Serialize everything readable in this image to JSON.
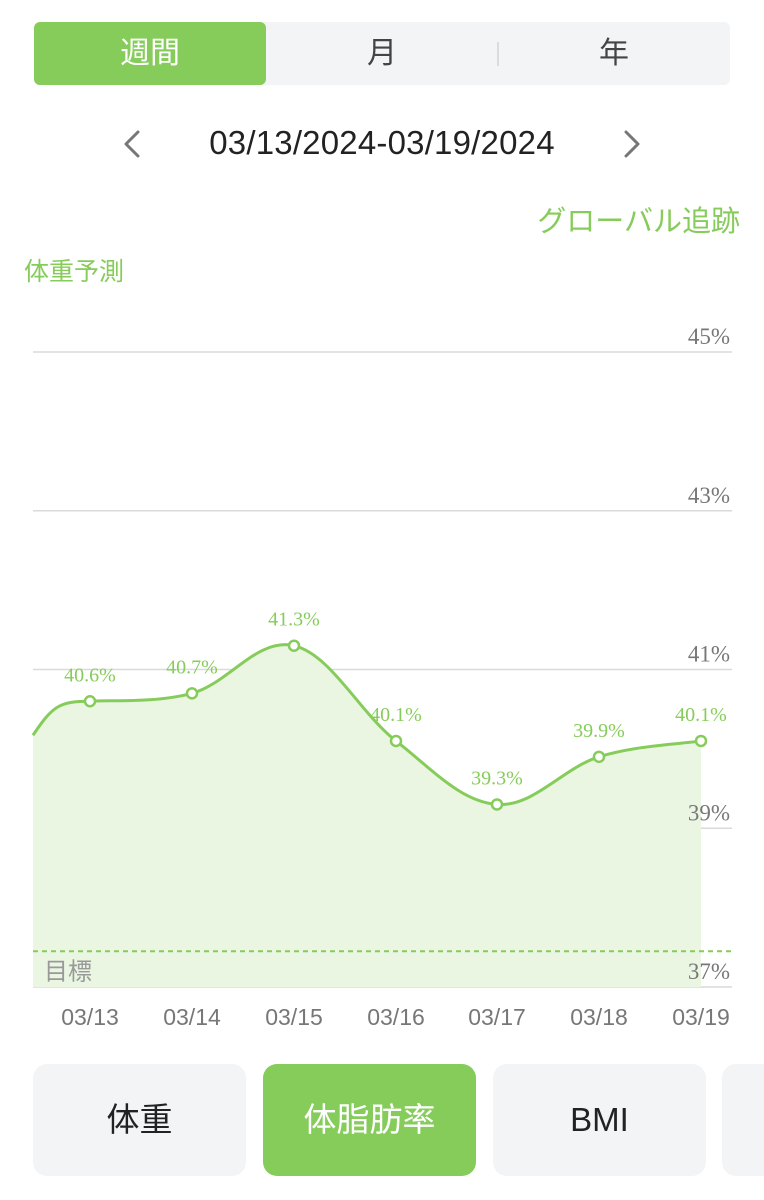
{
  "period_tabs": [
    {
      "label": "週間",
      "active": true
    },
    {
      "label": "月",
      "active": false
    },
    {
      "label": "年",
      "active": false
    }
  ],
  "date_range": "03/13/2024-03/19/2024",
  "global_tracking_link": "グローバル追跡",
  "forecast_label": "体重予測",
  "colors": {
    "accent": "#86cc5a",
    "fill": "#eaf6e2",
    "grid": "#dadada",
    "axis_text": "#777777"
  },
  "chart_data": {
    "type": "area",
    "x": [
      "03/13",
      "03/14",
      "03/15",
      "03/16",
      "03/17",
      "03/18",
      "03/19"
    ],
    "values": [
      40.6,
      40.7,
      41.3,
      40.1,
      39.3,
      39.9,
      40.1
    ],
    "data_labels": [
      "40.6%",
      "40.7%",
      "41.3%",
      "40.1%",
      "39.3%",
      "39.9%",
      "40.1%"
    ],
    "y_ticks": [
      "45%",
      "43%",
      "41%",
      "39%",
      "37%"
    ],
    "y_tick_values": [
      45,
      43,
      41,
      39,
      37
    ],
    "ylim": [
      37,
      45
    ],
    "target_label": "目標",
    "target_value": 37.45,
    "grid": true
  },
  "metric_tabs": [
    {
      "label": "体重",
      "active": false
    },
    {
      "label": "体脂肪率",
      "active": true
    },
    {
      "label": "BMI",
      "active": false
    }
  ]
}
